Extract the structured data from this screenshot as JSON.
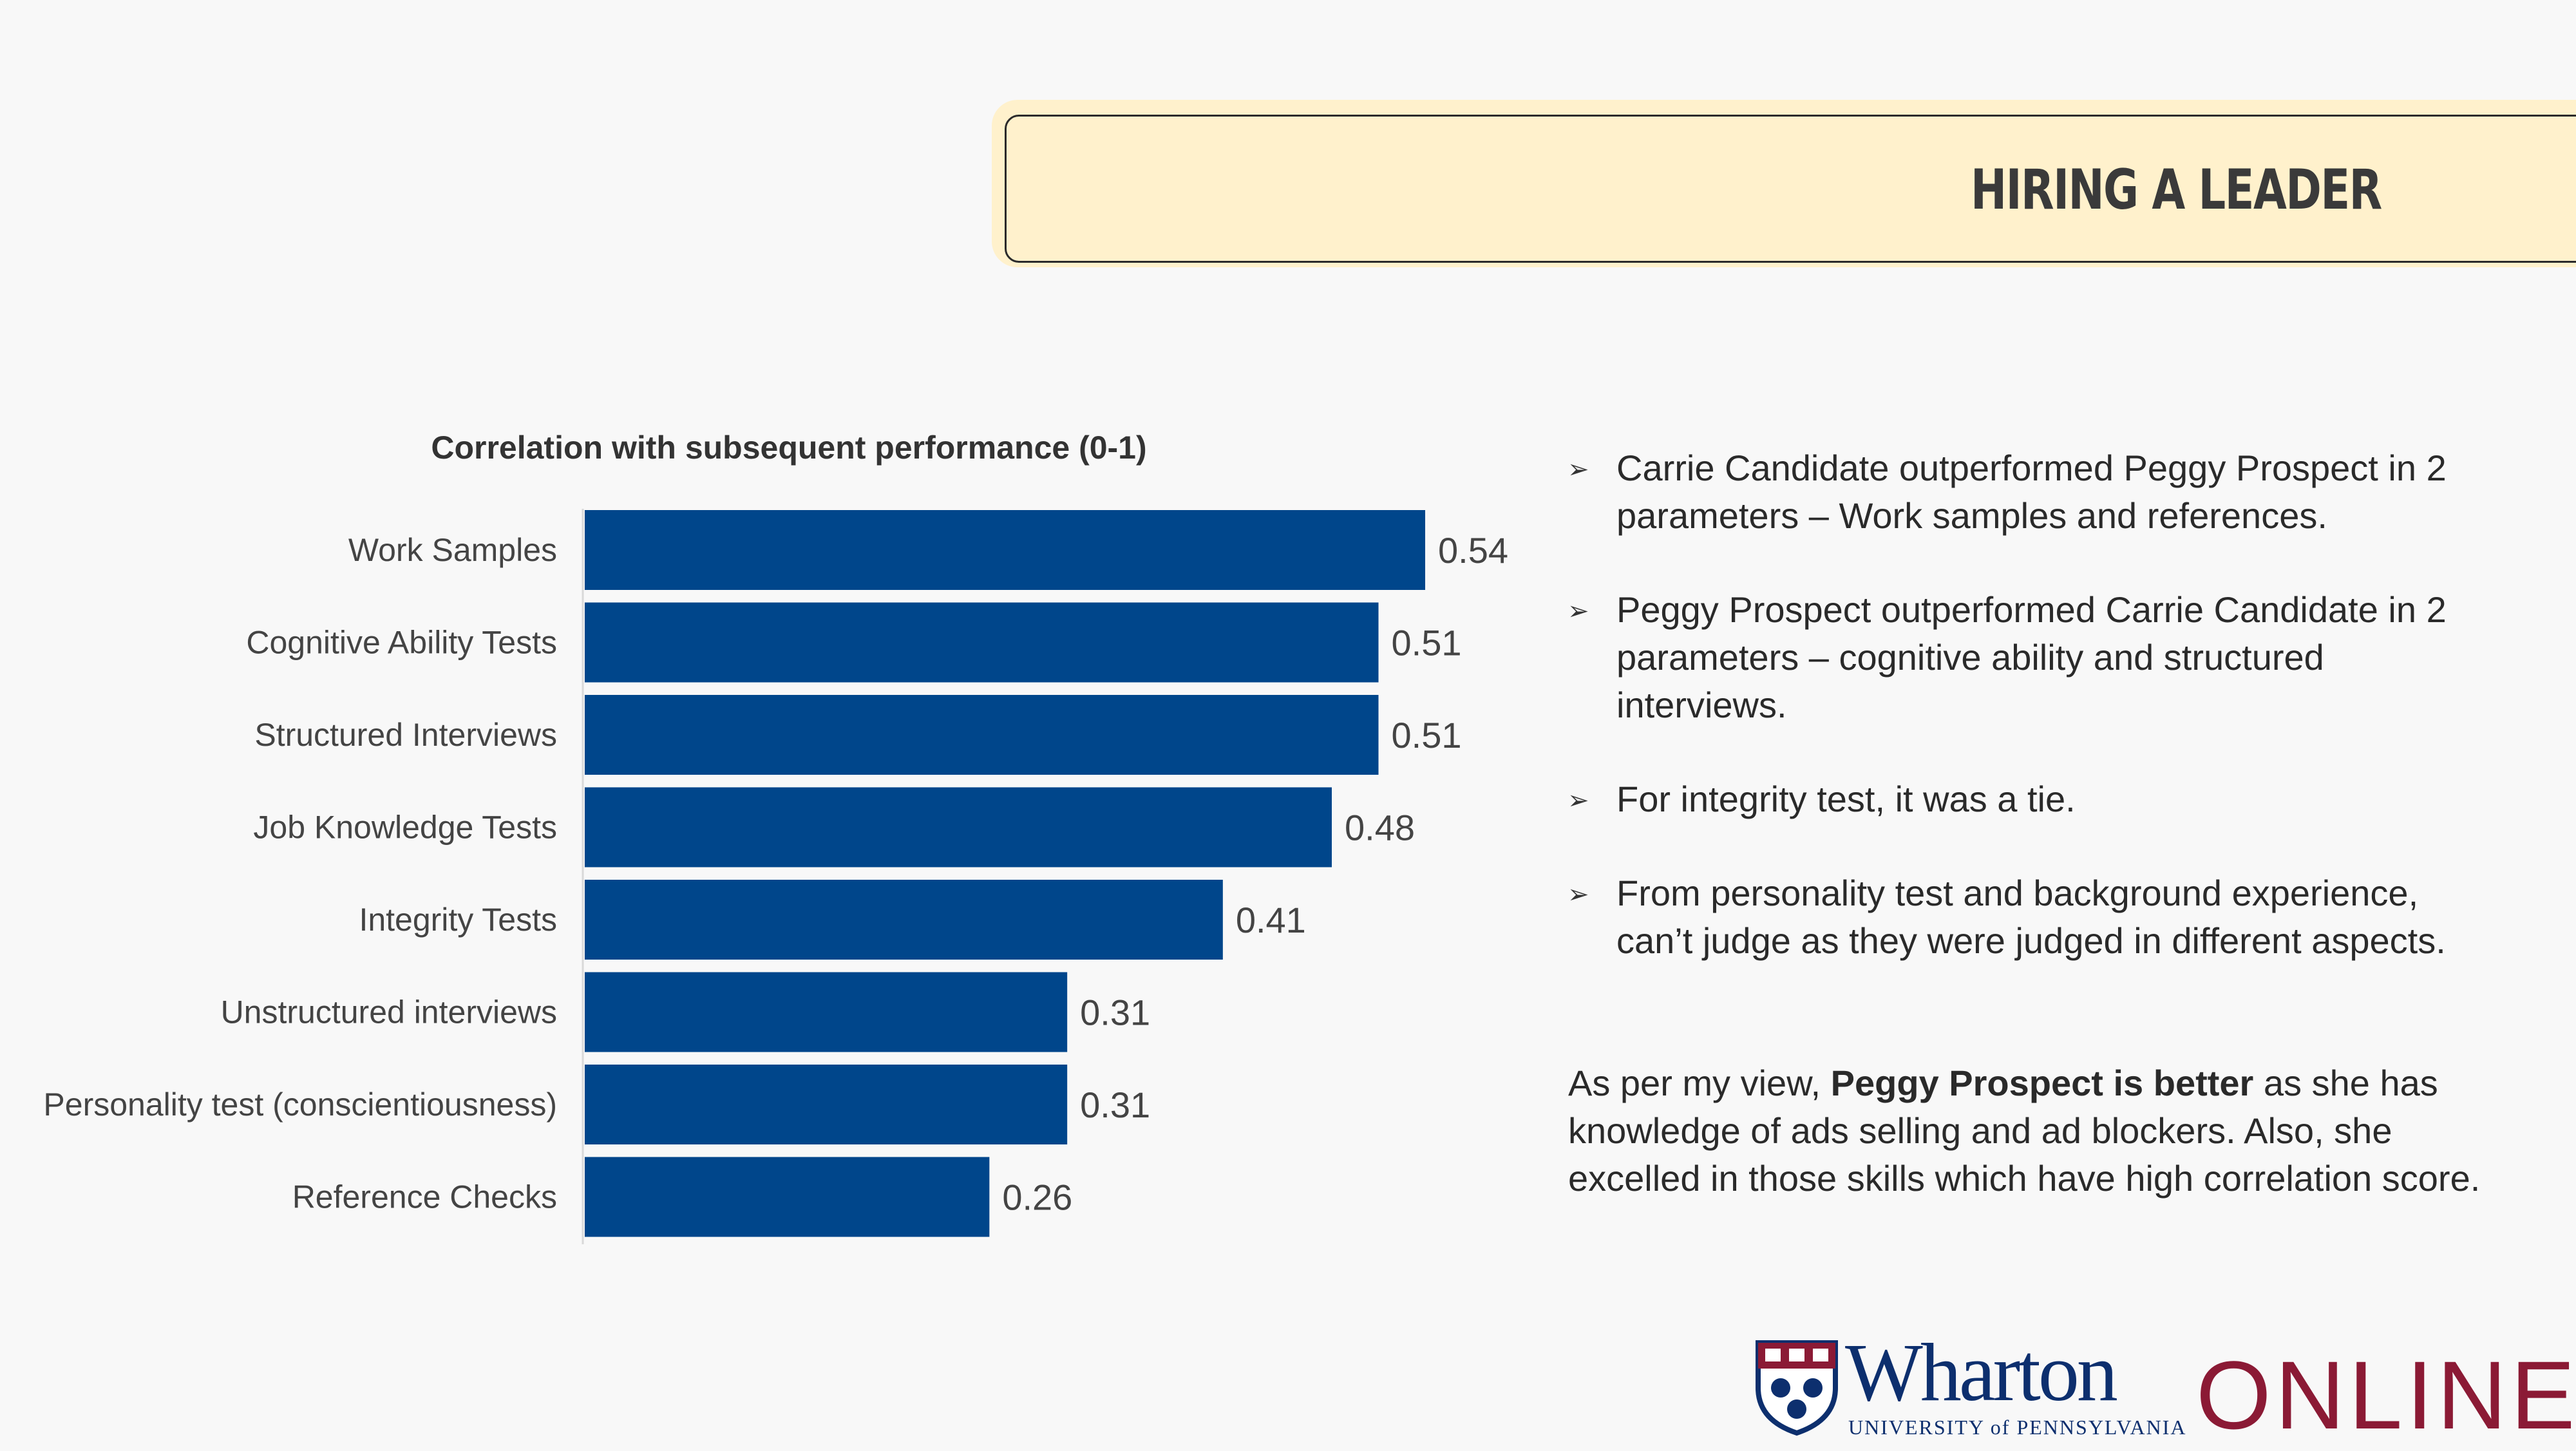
{
  "header": {
    "title": "HIRING A LEADER"
  },
  "chart_data": {
    "type": "bar",
    "orientation": "horizontal",
    "title": "Correlation with subsequent performance (0-1)",
    "categories": [
      "Work Samples",
      "Cognitive Ability Tests",
      "Structured Interviews",
      "Job Knowledge Tests",
      "Integrity Tests",
      "Unstructured interviews",
      "Personality test (conscientiousness)",
      "Reference Checks"
    ],
    "values": [
      0.54,
      0.51,
      0.51,
      0.48,
      0.41,
      0.31,
      0.31,
      0.26
    ],
    "value_labels": [
      "0.54",
      "0.51",
      "0.51",
      "0.48",
      "0.41",
      "0.31",
      "0.31",
      "0.26"
    ],
    "xlim": [
      0,
      0.54
    ],
    "bar_color": "#00468b",
    "grid": false
  },
  "bullets": [
    "Carrie Candidate outperformed Peggy Prospect in 2 parameters – Work samples and references.",
    "Peggy Prospect outperformed Carrie Candidate in 2 parameters – cognitive ability and structured interviews.",
    "For integrity test, it was a tie.",
    "From personality test and background experience, can’t judge as they were judged in different aspects."
  ],
  "conclusion": {
    "prefix": "As per my view, ",
    "bold": "Peggy Prospect is better",
    "suffix": " as she has knowledge of ads selling and ad blockers. Also, she excelled in those skills which have high correlation score."
  },
  "logo": {
    "name": "Wharton",
    "subtitle": "UNIVERSITY of PENNSYLVANIA",
    "online": "ONLINE",
    "brand_blue": "#0d2f6e",
    "brand_red": "#8b1a35"
  }
}
